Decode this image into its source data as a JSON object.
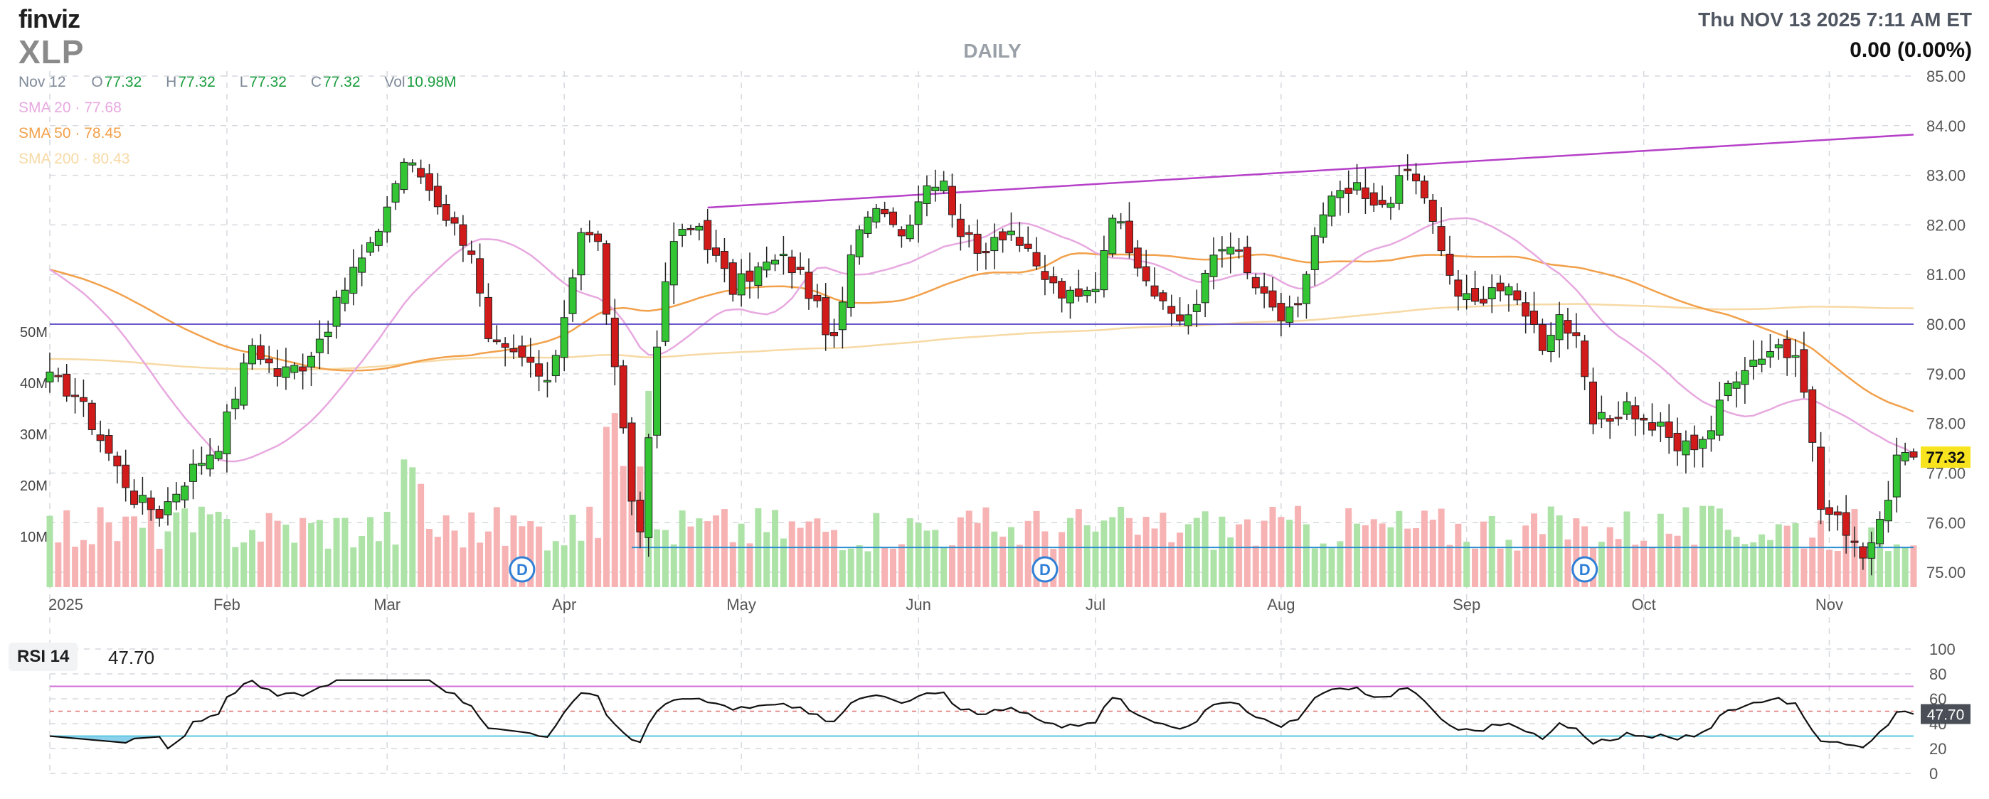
{
  "header": {
    "logo": "finviz",
    "ticker": "XLP",
    "period": "DAILY",
    "datetime": "Thu NOV 13 2025 7:11 AM ET",
    "change": "0.00 (0.00%)"
  },
  "ohlc": {
    "date": "Nov 12",
    "o_label": "O",
    "o": "77.32",
    "h_label": "H",
    "h": "77.32",
    "l_label": "L",
    "l": "77.32",
    "c_label": "C",
    "c": "77.32",
    "vol_label": "Vol",
    "vol": "10.98M"
  },
  "indicators": {
    "sma20": "SMA 20 · 77.68",
    "sma50": "SMA 50 · 78.45",
    "sma200": "SMA 200 · 80.43"
  },
  "rsi": {
    "label": "RSI 14",
    "value": "47.70",
    "tag": "47.70"
  },
  "colors": {
    "up": "#33c533",
    "down": "#d11a1a",
    "sma20": "#e7a8e0",
    "sma50": "#f2a04a",
    "sma200": "#f7d9a4",
    "trendline": "#b640c8",
    "support": "#2a8fd0",
    "hline": "#6a5acd",
    "rsi_line": "#111111",
    "rsi_upper": "#d070d8",
    "rsi_lower": "#58c8e0",
    "price_tag": "#f7e31e",
    "volume_up": "#aee3a8",
    "volume_down": "#f7b3b3"
  },
  "chart_data": {
    "type": "candlestick",
    "symbol": "XLP",
    "price_axis": {
      "ticks": [
        75,
        76,
        77,
        78,
        79,
        80,
        81,
        82,
        83,
        84,
        85
      ],
      "range": [
        74.7,
        85.1
      ]
    },
    "volume_axis": {
      "ticks": [
        "10M",
        "20M",
        "30M",
        "40M",
        "50M"
      ]
    },
    "rsi_axis": {
      "ticks": [
        0,
        20,
        40,
        60,
        80,
        100
      ],
      "upper": 70,
      "lower": 30,
      "mid": 50
    },
    "x_labels": [
      "2025",
      "Feb",
      "Mar",
      "Apr",
      "May",
      "Jun",
      "Jul",
      "Aug",
      "Sep",
      "Oct",
      "Nov"
    ],
    "x_label_index": [
      0,
      21,
      40,
      61,
      82,
      103,
      124,
      146,
      168,
      189,
      211
    ],
    "last_price": 77.32,
    "horizontal_line": 80.0,
    "support_line": 75.5,
    "trendline": {
      "start": {
        "index": 78,
        "price": 82.35
      },
      "end": {
        "index": 221,
        "price": 83.82
      }
    },
    "dividends": {
      "label": "D",
      "index": [
        56,
        118,
        182
      ]
    },
    "anchors": [
      [
        0,
        78.9
      ],
      [
        3,
        78.6
      ],
      [
        6,
        77.7
      ],
      [
        10,
        76.5
      ],
      [
        13,
        76.2
      ],
      [
        17,
        77.1
      ],
      [
        20,
        77.6
      ],
      [
        22,
        78.6
      ],
      [
        24,
        79.6
      ],
      [
        27,
        79.0
      ],
      [
        30,
        79.2
      ],
      [
        33,
        80.0
      ],
      [
        36,
        81.1
      ],
      [
        38,
        81.5
      ],
      [
        40,
        82.4
      ],
      [
        42,
        83.3
      ],
      [
        44,
        83.0
      ],
      [
        47,
        82.2
      ],
      [
        50,
        81.5
      ],
      [
        52,
        79.6
      ],
      [
        54,
        79.4
      ],
      [
        57,
        79.2
      ],
      [
        59,
        78.7
      ],
      [
        61,
        80.2
      ],
      [
        63,
        81.9
      ],
      [
        65,
        81.6
      ],
      [
        67,
        79.0
      ],
      [
        69,
        76.5
      ],
      [
        70,
        75.8
      ],
      [
        72,
        79.7
      ],
      [
        74,
        81.7
      ],
      [
        77,
        82.0
      ],
      [
        79,
        81.3
      ],
      [
        81,
        80.7
      ],
      [
        83,
        81.0
      ],
      [
        85,
        81.2
      ],
      [
        87,
        81.3
      ],
      [
        89,
        81.0
      ],
      [
        91,
        80.3
      ],
      [
        93,
        79.6
      ],
      [
        95,
        81.3
      ],
      [
        97,
        82.3
      ],
      [
        99,
        82.4
      ],
      [
        101,
        81.8
      ],
      [
        104,
        82.9
      ],
      [
        106,
        82.8
      ],
      [
        108,
        81.9
      ],
      [
        110,
        81.4
      ],
      [
        112,
        81.8
      ],
      [
        114,
        81.9
      ],
      [
        117,
        81.1
      ],
      [
        120,
        80.6
      ],
      [
        122,
        80.5
      ],
      [
        124,
        80.8
      ],
      [
        126,
        82.3
      ],
      [
        128,
        81.6
      ],
      [
        130,
        81.0
      ],
      [
        132,
        80.3
      ],
      [
        134,
        80.1
      ],
      [
        136,
        80.4
      ],
      [
        138,
        81.4
      ],
      [
        140,
        81.7
      ],
      [
        142,
        81.0
      ],
      [
        144,
        80.5
      ],
      [
        146,
        80.1
      ],
      [
        148,
        80.3
      ],
      [
        150,
        81.8
      ],
      [
        152,
        82.5
      ],
      [
        155,
        82.7
      ],
      [
        157,
        82.3
      ],
      [
        159,
        82.6
      ],
      [
        161,
        83.1
      ],
      [
        163,
        82.6
      ],
      [
        165,
        81.4
      ],
      [
        167,
        80.6
      ],
      [
        169,
        80.4
      ],
      [
        171,
        80.8
      ],
      [
        173,
        80.6
      ],
      [
        175,
        80.3
      ],
      [
        177,
        79.6
      ],
      [
        179,
        80.2
      ],
      [
        181,
        79.6
      ],
      [
        183,
        78.0
      ],
      [
        185,
        78.1
      ],
      [
        187,
        78.4
      ],
      [
        189,
        78.0
      ],
      [
        191,
        77.9
      ],
      [
        193,
        77.5
      ],
      [
        195,
        77.6
      ],
      [
        197,
        77.9
      ],
      [
        199,
        78.8
      ],
      [
        201,
        79.2
      ],
      [
        203,
        79.4
      ],
      [
        205,
        79.6
      ],
      [
        207,
        79.2
      ],
      [
        208,
        78.8
      ],
      [
        210,
        76.3
      ],
      [
        213,
        75.9
      ],
      [
        215,
        75.4
      ],
      [
        217,
        75.9
      ],
      [
        219,
        77.3
      ],
      [
        221,
        77.32
      ]
    ]
  }
}
